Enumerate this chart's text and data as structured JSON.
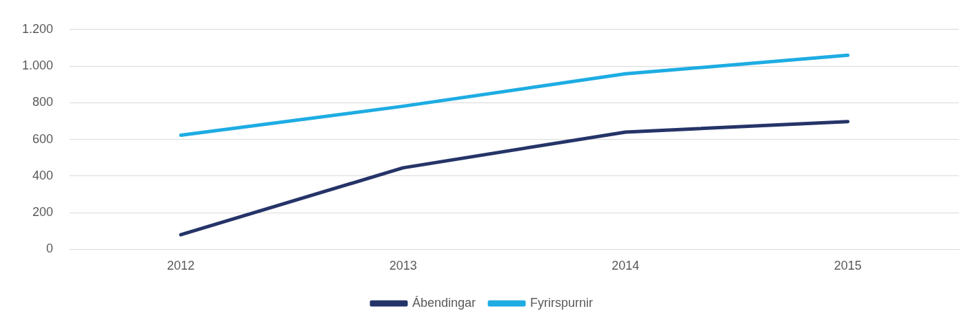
{
  "chart_data": {
    "type": "line",
    "categories": [
      "2012",
      "2013",
      "2014",
      "2015"
    ],
    "series": [
      {
        "name": "Ábendingar",
        "color": "#253468",
        "values": [
          80,
          445,
          640,
          697
        ]
      },
      {
        "name": "Fyrirspurnir",
        "color": "#1eace3",
        "values": [
          623,
          781,
          958,
          1059
        ]
      }
    ],
    "ylim": [
      0,
      1200
    ],
    "yticks": [
      0,
      200,
      400,
      600,
      800,
      {
        "value": 1000,
        "label": "1.000"
      },
      {
        "value": 1200,
        "label": "1.200"
      }
    ],
    "grid": "y",
    "legend": "bottom",
    "marker": "none",
    "line_style": "solid"
  }
}
